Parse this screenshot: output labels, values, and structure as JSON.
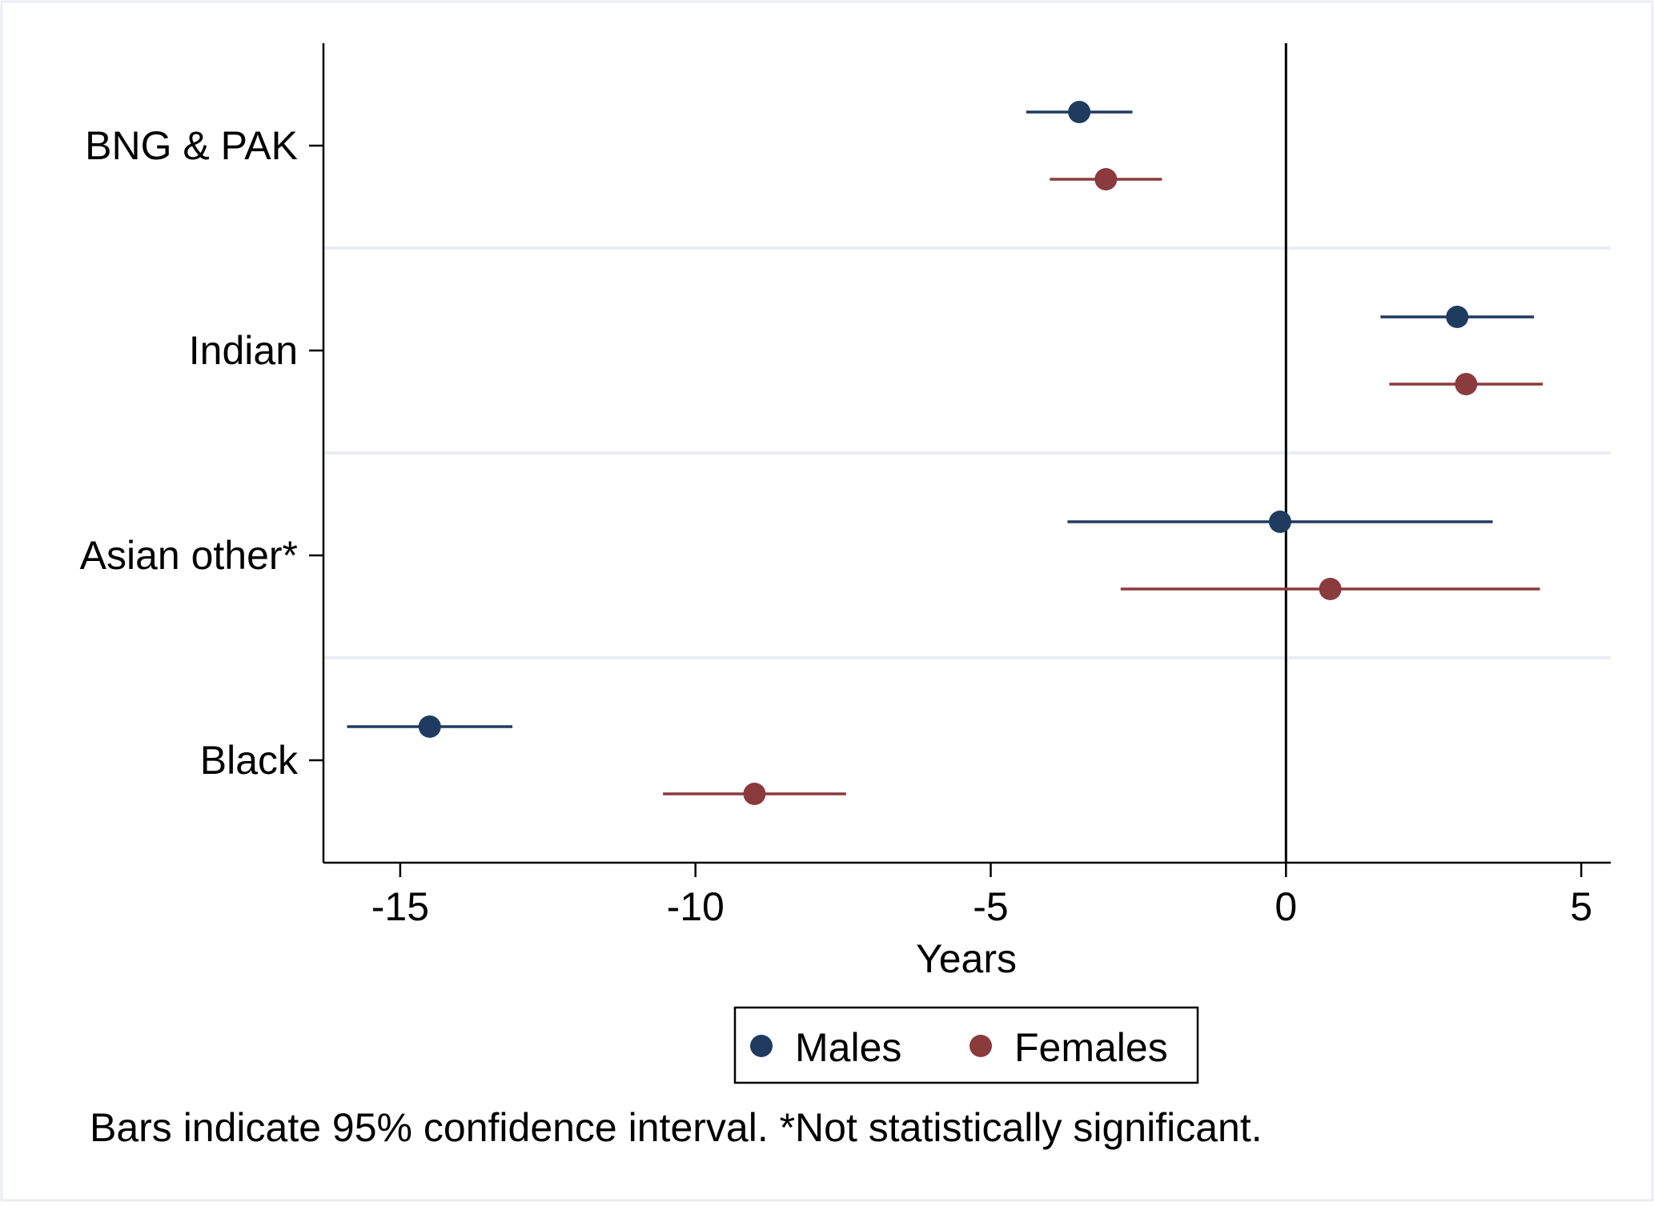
{
  "chart_data": {
    "type": "scatter",
    "subtype": "coefficient-plot-horizontal-ci",
    "categories": [
      "BNG & PAK",
      "Indian",
      "Asian other*",
      "Black"
    ],
    "series": [
      {
        "name": "Males",
        "color": "#1f3b60",
        "points": [
          {
            "category": "BNG & PAK",
            "value": -3.5,
            "ci_low": -4.4,
            "ci_high": -2.6
          },
          {
            "category": "Indian",
            "value": 2.9,
            "ci_low": 1.6,
            "ci_high": 4.2
          },
          {
            "category": "Asian other*",
            "value": -0.1,
            "ci_low": -3.7,
            "ci_high": 3.5
          },
          {
            "category": "Black",
            "value": -14.5,
            "ci_low": -15.9,
            "ci_high": -13.1
          }
        ]
      },
      {
        "name": "Females",
        "color": "#8b3a3e",
        "points": [
          {
            "category": "BNG & PAK",
            "value": -3.05,
            "ci_low": -4.0,
            "ci_high": -2.1
          },
          {
            "category": "Indian",
            "value": 3.05,
            "ci_low": 1.75,
            "ci_high": 4.35
          },
          {
            "category": "Asian other*",
            "value": 0.75,
            "ci_low": -2.8,
            "ci_high": 4.3
          },
          {
            "category": "Black",
            "value": -9.0,
            "ci_low": -10.55,
            "ci_high": -7.45
          }
        ]
      }
    ],
    "xlabel": "Years",
    "xlim": [
      -16.3,
      5.5
    ],
    "xticks": [
      -15,
      -10,
      -5,
      0,
      5
    ],
    "reference_line_x": 0,
    "grid": "horizontal separators between categories",
    "legend": {
      "position": "bottom",
      "entries": [
        "Males",
        "Females"
      ]
    },
    "note": "Bars indicate 95% confidence interval. *Not statistically significant."
  }
}
